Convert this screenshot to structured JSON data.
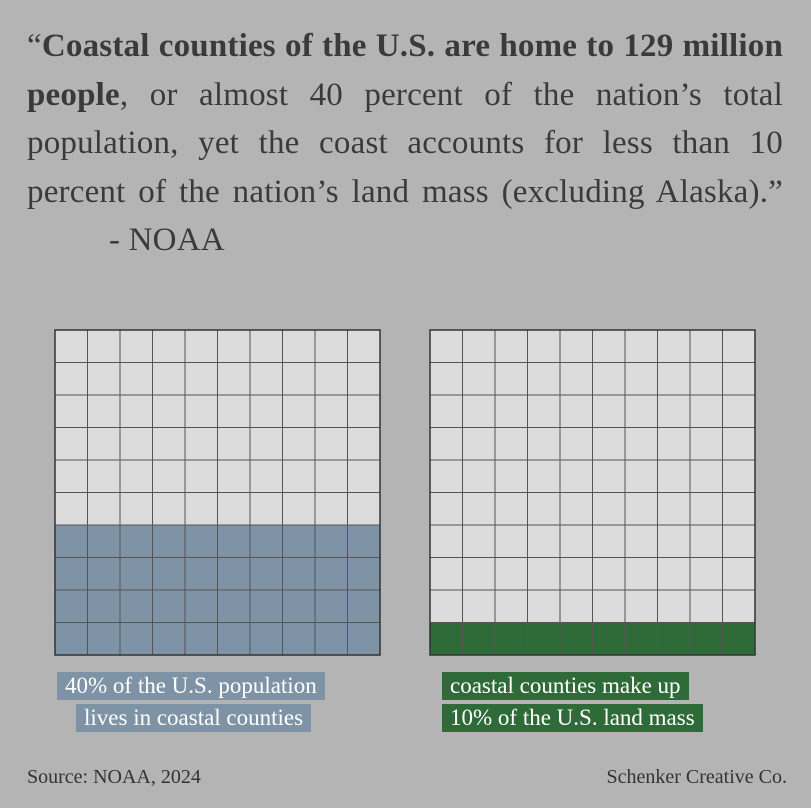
{
  "quote": {
    "open": "“",
    "bold": "Coastal counties of the U.S. are home to 129 million people",
    "rest": ", or almost 40 percent of the nation’s total population, yet the coast accounts for less than 10 percent of the nation’s land mass (excluding Alaska).”",
    "attribution": "- NOAA"
  },
  "chart_data": [
    {
      "type": "waffle",
      "rows": 10,
      "cols": 10,
      "total": 100,
      "value": 40,
      "unit": "percent",
      "fill_color": "#7f93a6",
      "empty_color": "#dcdcdc",
      "label_lines": [
        "40% of the U.S. population",
        "lives in coastal counties"
      ]
    },
    {
      "type": "waffle",
      "rows": 10,
      "cols": 10,
      "total": 100,
      "value": 10,
      "unit": "percent",
      "fill_color": "#2f6b39",
      "empty_color": "#dcdcdc",
      "label_lines": [
        "coastal counties make up",
        "10% of the U.S. land mass"
      ]
    }
  ],
  "footer": {
    "source": "Source: NOAA, 2024",
    "credit": "Schenker Creative Co."
  }
}
